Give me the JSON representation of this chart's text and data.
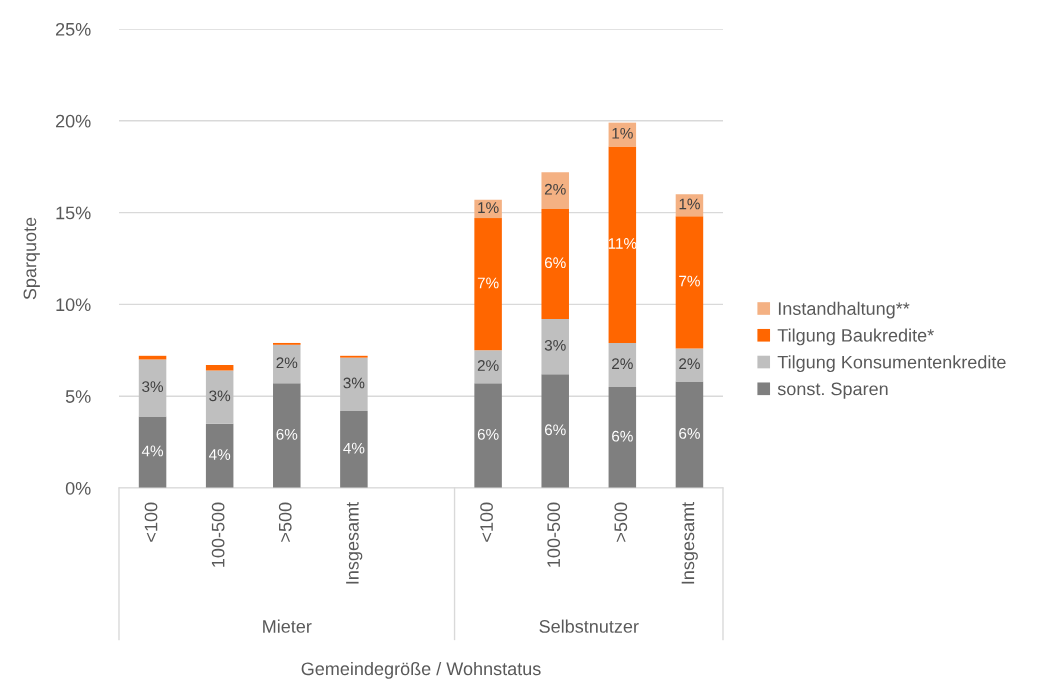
{
  "chart_data": {
    "type": "bar",
    "stacked": true,
    "xlabel": "Gemeindegröße / Wohnstatus",
    "ylabel": "Sparquote",
    "categories": [
      "<100",
      "100-500",
      ">500",
      "Insgesamt",
      null,
      "<100",
      "100-500",
      ">500",
      "Insgesamt"
    ],
    "annotations": [
      "Mieter",
      "Selbstnutzer"
    ],
    "series": [
      {
        "name": "sonst. Sparen",
        "color": "#7f7f7f",
        "values": [
          3.9,
          3.5,
          5.7,
          4.2,
          null,
          5.7,
          6.2,
          5.5,
          5.8
        ],
        "value_labels": [
          "4%",
          "4%",
          "6%",
          "4%",
          null,
          "6%",
          "6%",
          "6%",
          "6%"
        ]
      },
      {
        "name": "Tilgung Konsumentenkredite",
        "color": "#bfbfbf",
        "values": [
          3.1,
          2.9,
          2.1,
          2.9,
          null,
          1.8,
          3.0,
          2.4,
          1.8
        ],
        "value_labels": [
          "3%",
          "3%",
          "2%",
          "3%",
          null,
          "2%",
          "3%",
          "2%",
          "2%"
        ]
      },
      {
        "name": "Tilgung Baukredite*",
        "color": "#ff6600",
        "values": [
          0.2,
          0.3,
          0.1,
          0.1,
          null,
          7.2,
          6.0,
          10.7,
          7.2
        ],
        "value_labels": [
          null,
          null,
          null,
          null,
          null,
          "7%",
          "6%",
          "11%",
          "7%"
        ]
      },
      {
        "name": "Instandhaltung**",
        "color": "#f4b183",
        "values": [
          null,
          null,
          null,
          null,
          null,
          1.0,
          2.0,
          1.3,
          1.2
        ],
        "value_labels": [
          null,
          null,
          null,
          null,
          null,
          "1%",
          "2%",
          "1%",
          "1%"
        ]
      }
    ],
    "ylim": [
      0,
      25
    ],
    "yticks": [
      {
        "value": 0,
        "label": "0%"
      },
      {
        "value": 5,
        "label": "5%"
      },
      {
        "value": 10,
        "label": "10%"
      },
      {
        "value": 15,
        "label": "15%"
      },
      {
        "value": 20,
        "label": "20%"
      },
      {
        "value": 25,
        "label": "25%"
      }
    ],
    "grid": "y",
    "legend": "right"
  }
}
